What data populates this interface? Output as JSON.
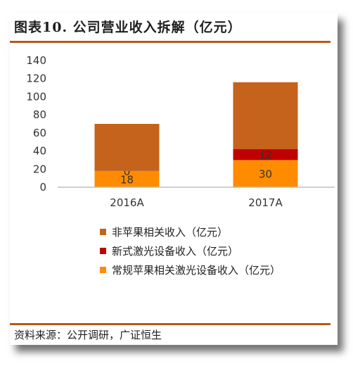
{
  "header": {
    "title": "图表10.  公司营业收入拆解（亿元）"
  },
  "footer": {
    "source": "资料来源：公开调研，广证恒生"
  },
  "colors": {
    "rule": "#b85a1a",
    "axis": "#bfbfbf"
  },
  "chart_data": {
    "type": "bar",
    "stacked": true,
    "categories": [
      "2016A",
      "2017A"
    ],
    "ylim": [
      0,
      140
    ],
    "yticks": [
      0,
      20,
      40,
      60,
      80,
      100,
      120,
      140
    ],
    "grid": false,
    "legend_position": "bottom",
    "series": [
      {
        "name": "常规苹果相关激光设备收入（亿元）",
        "color": "#ff8c00",
        "values": [
          18,
          30
        ],
        "labels": [
          "18",
          "30"
        ]
      },
      {
        "name": "新式激光设备收入（亿元）",
        "color": "#c00000",
        "values": [
          0,
          12
        ],
        "labels": [
          "0",
          "12"
        ]
      },
      {
        "name": "非苹果相关收入（亿元）",
        "color": "#c5621b",
        "values": [
          52,
          74
        ],
        "labels": [
          "",
          ""
        ]
      }
    ],
    "legend_order": [
      2,
      1,
      0
    ]
  }
}
